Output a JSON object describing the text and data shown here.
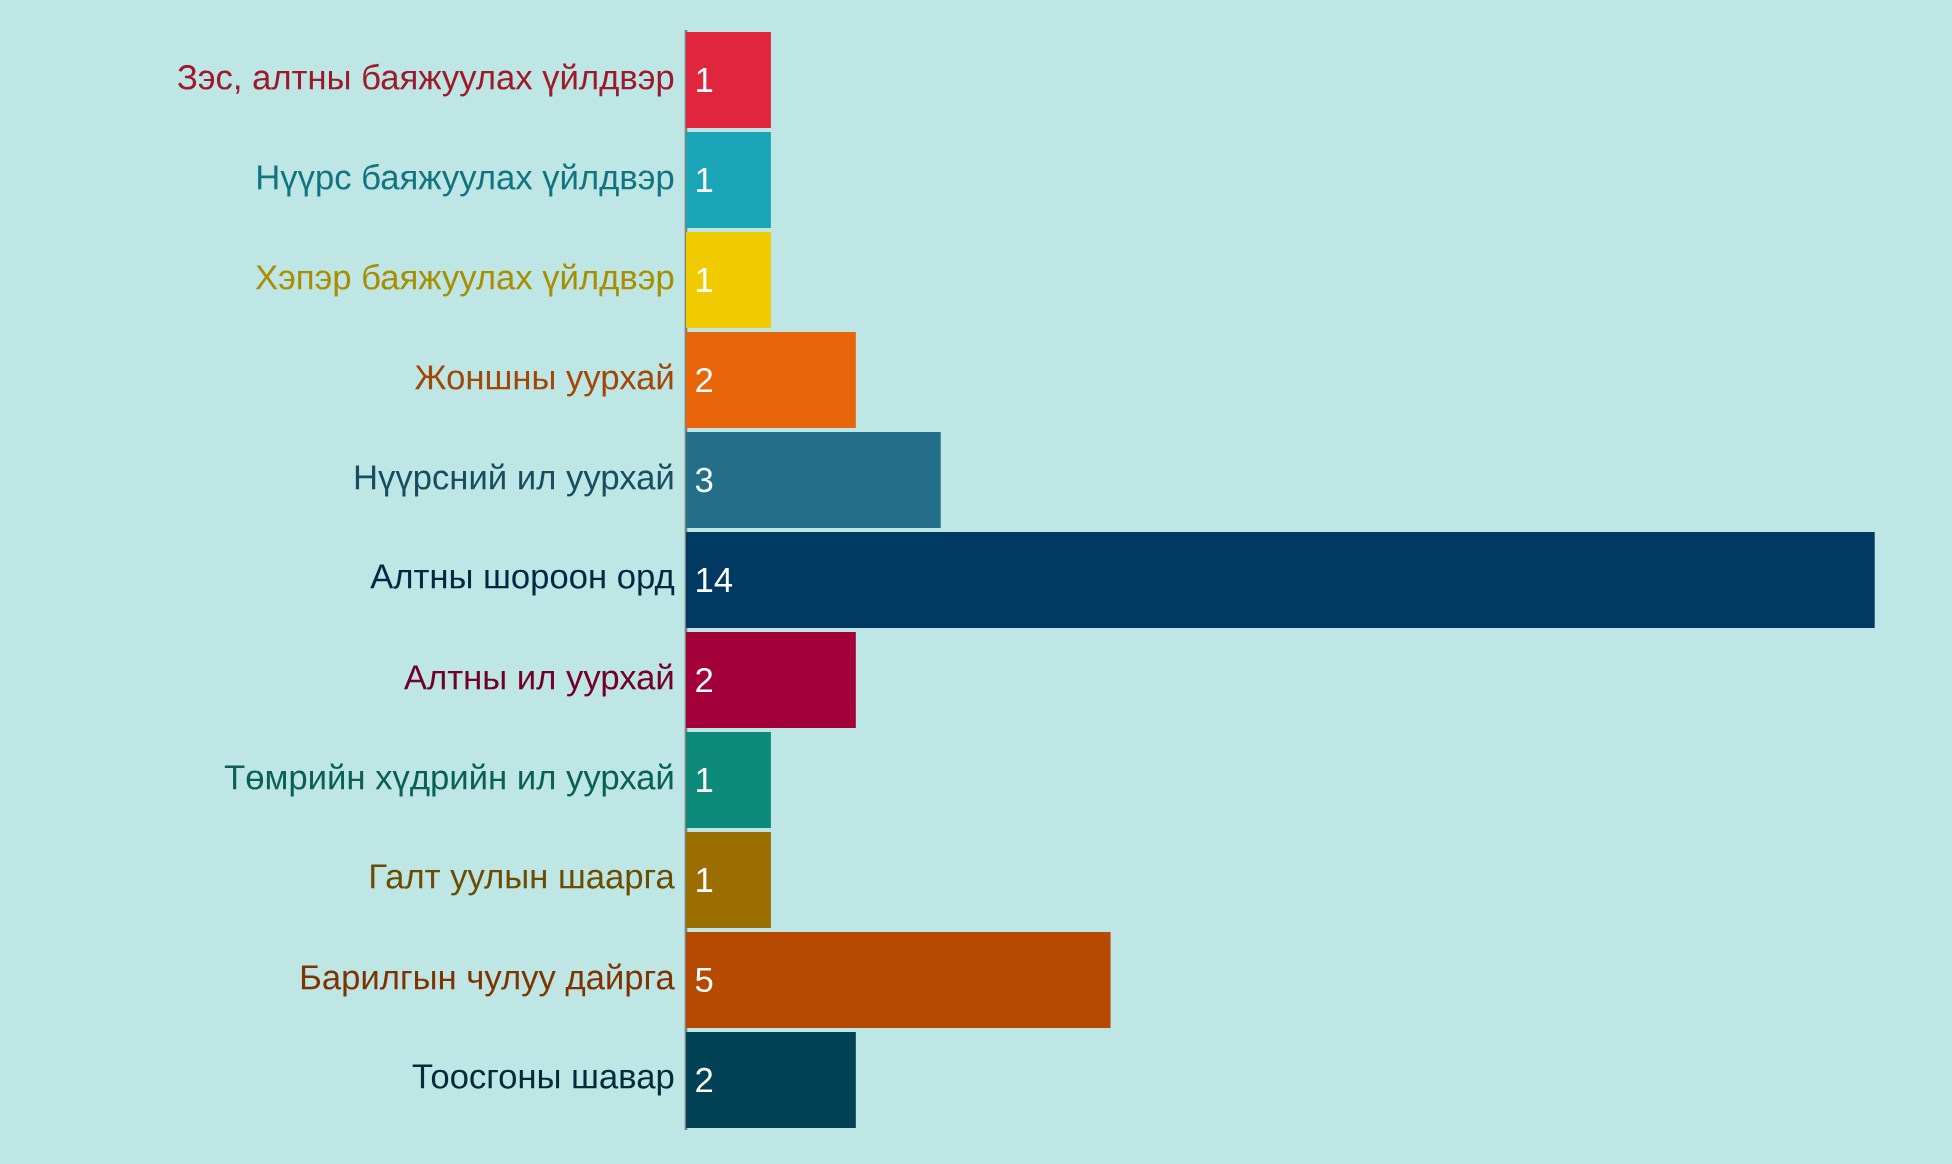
{
  "chart_data": {
    "type": "bar",
    "orientation": "horizontal",
    "categories": [
      "Зэс, алтны баяжуулах үйлдвэр",
      "Нүүрс баяжуулах үйлдвэр",
      "Хэпэр баяжуулах үйлдвэр",
      "Жоншны уурхай",
      "Нүүрсний ил уурхай",
      "Алтны шороон орд",
      "Алтны ил уурхай",
      "Төмрийн хүдрийн ил уурхай",
      "Галт уулын шаарга",
      "Барилгын чулуу дайрга",
      "Тоосгоны шавар"
    ],
    "values": [
      1,
      1,
      1,
      2,
      3,
      14,
      2,
      1,
      1,
      5,
      2
    ],
    "colors": [
      "#e0253e",
      "#1aa6b7",
      "#f0cb00",
      "#e8650a",
      "#236f8a",
      "#003a63",
      "#a3003a",
      "#0d8a7a",
      "#9a6e00",
      "#b54a00",
      "#004156"
    ],
    "data_labels": true
  }
}
